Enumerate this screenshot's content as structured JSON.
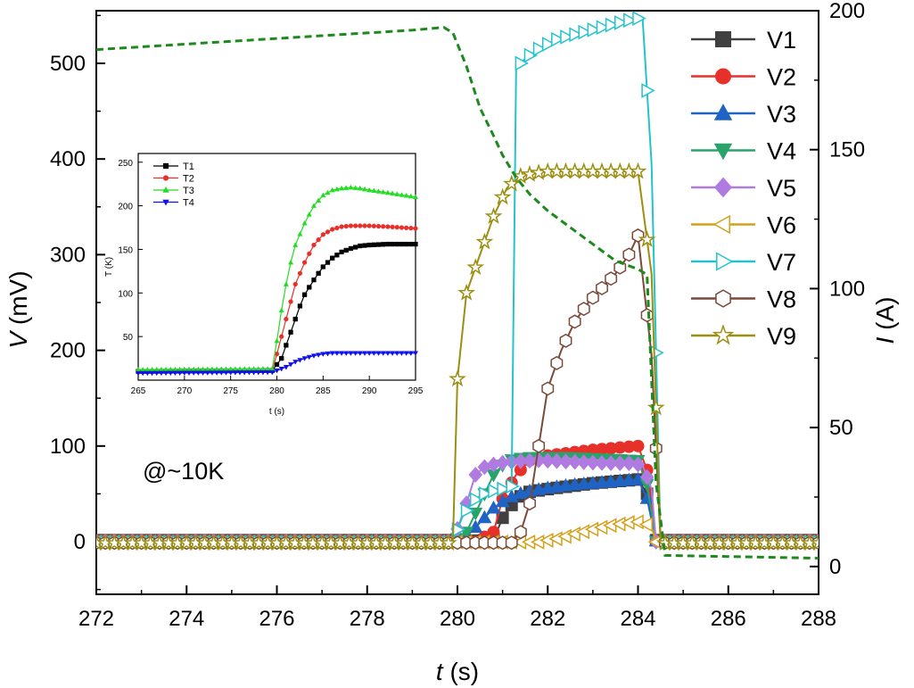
{
  "chart_data": [
    {
      "type": "line",
      "title": "",
      "xlabel": "t (s)",
      "ylabel_left": "V (mV)",
      "ylabel_right": "I (A)",
      "xlim": [
        272,
        288
      ],
      "ylim_left": [
        -55,
        555
      ],
      "ylim_right": [
        -10,
        200
      ],
      "xticks": [
        272,
        274,
        276,
        278,
        280,
        282,
        284,
        286,
        288
      ],
      "yticks_left": [
        0,
        100,
        200,
        300,
        400,
        500
      ],
      "yticks_right": [
        0,
        50,
        100,
        150,
        200
      ],
      "annotation": "@~10K",
      "legend_position": "top-right",
      "series": [
        {
          "name": "V1",
          "color": "#404040",
          "marker": "square",
          "x": [
            272,
            279.9,
            280.8,
            281.0,
            281.3,
            281.6,
            282,
            282.5,
            283,
            283.5,
            284.0,
            284.2,
            284.4,
            288
          ],
          "y": [
            0,
            0,
            2,
            25,
            45,
            52,
            55,
            58,
            61,
            63,
            65,
            50,
            0,
            0
          ]
        },
        {
          "name": "V2",
          "color": "#e8302a",
          "marker": "circle",
          "x": [
            272,
            280.4,
            280.8,
            281.0,
            281.3,
            281.6,
            282,
            282.5,
            283,
            283.5,
            284.0,
            284.2,
            284.4,
            288
          ],
          "y": [
            0,
            0,
            10,
            45,
            70,
            85,
            90,
            93,
            96,
            98,
            100,
            75,
            0,
            0
          ]
        },
        {
          "name": "V3",
          "color": "#1f63c4",
          "marker": "triangle-up",
          "x": [
            272,
            279.9,
            280.2,
            280.5,
            280.8,
            281.1,
            281.5,
            282,
            282.5,
            283,
            283.5,
            284.0,
            284.2,
            284.4,
            288
          ],
          "y": [
            0,
            0,
            5,
            20,
            35,
            45,
            52,
            56,
            59,
            61,
            63,
            65,
            45,
            0,
            0
          ]
        },
        {
          "name": "V4",
          "color": "#2aa36b",
          "marker": "triangle-down",
          "x": [
            272,
            279.9,
            280.2,
            280.5,
            280.8,
            281.1,
            281.5,
            282,
            282.5,
            283,
            283.5,
            284.0,
            284.2,
            284.4,
            288
          ],
          "y": [
            0,
            0,
            10,
            40,
            70,
            85,
            88,
            88,
            88,
            87,
            86,
            85,
            60,
            0,
            0
          ]
        },
        {
          "name": "V5",
          "color": "#b07be0",
          "marker": "diamond",
          "x": [
            272,
            279.9,
            280.2,
            280.4,
            280.6,
            280.9,
            281.3,
            281.8,
            282.3,
            282.8,
            283.3,
            283.8,
            284.1,
            284.3,
            284.4,
            288
          ],
          "y": [
            0,
            0,
            40,
            70,
            78,
            82,
            84,
            85,
            84,
            83,
            82,
            82,
            80,
            55,
            0,
            0
          ]
        },
        {
          "name": "V6",
          "color": "#d4a019",
          "marker": "triangle-left",
          "x": [
            272,
            281.8,
            282.2,
            282.6,
            283.0,
            283.4,
            283.8,
            284.1,
            284.3,
            284.4,
            288
          ],
          "y": [
            0,
            0,
            3,
            8,
            13,
            17,
            20,
            21,
            15,
            0,
            0
          ]
        },
        {
          "name": "V7",
          "color": "#24c3cc",
          "marker": "triangle-right",
          "x": [
            272,
            279.9,
            280.1,
            280.3,
            280.5,
            280.7,
            281.0,
            281.2,
            281.3,
            281.5,
            281.8,
            282.2,
            282.6,
            283.0,
            283.4,
            283.8,
            284.1,
            284.3,
            284.5,
            288
          ],
          "y": [
            0,
            0,
            25,
            40,
            48,
            52,
            55,
            58,
            495,
            505,
            515,
            525,
            530,
            535,
            540,
            545,
            548,
            395,
            0,
            0
          ]
        },
        {
          "name": "V8",
          "color": "#7a4a3a",
          "marker": "hexagon",
          "x": [
            272,
            281.2,
            281.4,
            281.6,
            281.8,
            282.0,
            282.3,
            282.6,
            282.9,
            283.2,
            283.5,
            283.8,
            284.0,
            284.3,
            284.5,
            288
          ],
          "y": [
            0,
            0,
            10,
            40,
            100,
            160,
            200,
            230,
            250,
            265,
            280,
            300,
            320,
            195,
            0,
            0
          ]
        },
        {
          "name": "V9",
          "color": "#9b8f12",
          "marker": "star",
          "x": [
            272,
            279.9,
            280.0,
            280.2,
            280.5,
            280.8,
            281.1,
            281.4,
            281.7,
            282.0,
            282.4,
            282.8,
            283.2,
            283.6,
            284.0,
            284.3,
            284.5,
            288
          ],
          "y": [
            0,
            0,
            170,
            260,
            300,
            340,
            370,
            382,
            385,
            387,
            387,
            387,
            387,
            387,
            387,
            280,
            0,
            0
          ]
        },
        {
          "name": "",
          "axis": "right",
          "color": "#1e8a1e",
          "style": "dashed",
          "x": [
            272,
            273,
            274,
            275,
            276,
            277,
            278,
            279,
            279.7,
            279.9,
            280.2,
            280.5,
            280.8,
            281.0,
            281.3,
            281.6,
            282.0,
            282.5,
            283.0,
            283.5,
            284.0,
            284.2,
            284.4,
            284.6,
            288
          ],
          "y": [
            186,
            187,
            188,
            189,
            190,
            191,
            192,
            193,
            194,
            192,
            180,
            165,
            155,
            148,
            140,
            134,
            128,
            122,
            116,
            110,
            107,
            105,
            30,
            4,
            3
          ]
        }
      ]
    },
    {
      "type": "line",
      "title": "",
      "xlabel": "t (s)",
      "ylabel": "T (K)",
      "xlim": [
        265,
        295
      ],
      "ylim": [
        0,
        260
      ],
      "xticks": [
        265,
        270,
        275,
        280,
        285,
        290,
        295
      ],
      "yticks": [
        0,
        50,
        100,
        150,
        200,
        250
      ],
      "legend_position": "top-left",
      "series": [
        {
          "name": "T1",
          "color": "#000000",
          "marker": "square",
          "x": [
            265,
            279.5,
            280.5,
            281,
            281.5,
            282,
            282.5,
            283,
            284,
            285,
            286,
            287,
            288,
            289,
            290,
            292,
            295
          ],
          "y": [
            10,
            11,
            25,
            40,
            55,
            70,
            85,
            98,
            115,
            130,
            140,
            147,
            151,
            154,
            155,
            156,
            156
          ]
        },
        {
          "name": "T2",
          "color": "#e8302a",
          "marker": "circle",
          "x": [
            265,
            279.5,
            280,
            280.5,
            281,
            281.5,
            282,
            283,
            284,
            285,
            286,
            287,
            288,
            289,
            290,
            292,
            295
          ],
          "y": [
            10,
            11,
            30,
            50,
            70,
            90,
            110,
            135,
            155,
            167,
            173,
            176,
            177,
            177,
            177,
            176,
            174
          ]
        },
        {
          "name": "T3",
          "color": "#22dd22",
          "marker": "triangle-up",
          "x": [
            265,
            279.5,
            280,
            280.5,
            281,
            281.5,
            282,
            283,
            284,
            285,
            286,
            287,
            288,
            289,
            290,
            292,
            295
          ],
          "y": [
            12,
            13,
            45,
            80,
            110,
            135,
            155,
            180,
            200,
            212,
            218,
            220,
            221,
            220,
            218,
            215,
            210
          ]
        },
        {
          "name": "T4",
          "color": "#1010ee",
          "marker": "triangle-down",
          "x": [
            265,
            279.5,
            280,
            281,
            282,
            283,
            284,
            285,
            286,
            287,
            288,
            290,
            292,
            295
          ],
          "y": [
            8,
            9,
            11,
            15,
            21,
            25,
            28,
            30,
            31,
            31,
            31,
            31,
            31,
            31
          ]
        }
      ]
    }
  ]
}
